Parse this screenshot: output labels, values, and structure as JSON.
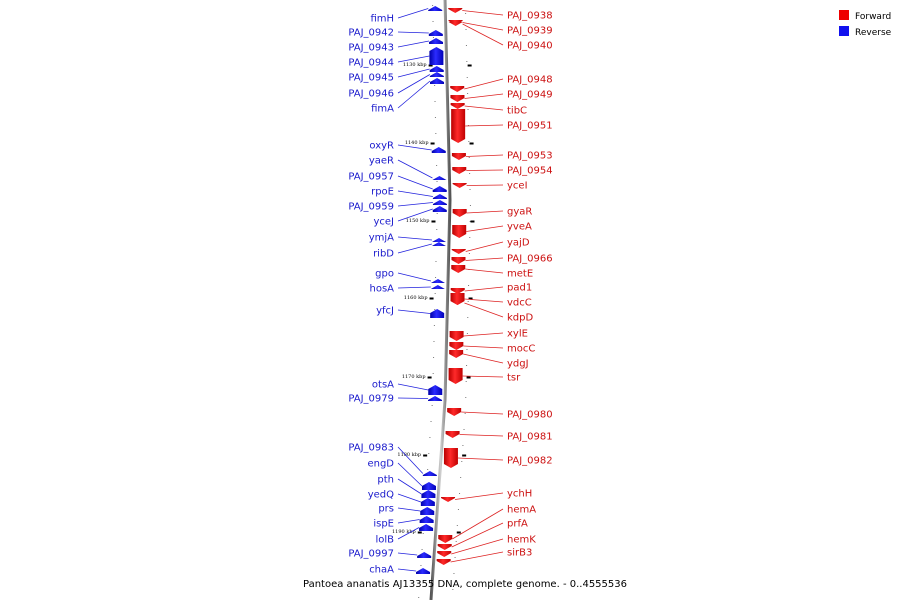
{
  "caption": "Pantoea ananatis AJ13355 DNA, complete genome. - 0..4555536",
  "legend": [
    {
      "label": "Forward",
      "color": "#ee0000"
    },
    {
      "label": "Reverse",
      "color": "#1111ee"
    }
  ],
  "ticks": [
    "1130 kbp",
    "1140 kbp",
    "1150 kbp",
    "1160 kbp",
    "1170 kbp",
    "1180 kbp",
    "1190 kbp"
  ],
  "reverse_genes": [
    "fimH",
    "PAJ_0942",
    "PAJ_0943",
    "PAJ_0944",
    "PAJ_0945",
    "PAJ_0946",
    "fimA",
    "oxyR",
    "yaeR",
    "PAJ_0957",
    "rpoE",
    "PAJ_0959",
    "yceJ",
    "ymjA",
    "ribD",
    "gpo",
    "hosA",
    "yfcJ",
    "otsA",
    "PAJ_0979",
    "PAJ_0983",
    "engD",
    "pth",
    "yedQ",
    "prs",
    "ispE",
    "lolB",
    "PAJ_0997",
    "chaA"
  ],
  "forward_genes": [
    "PAJ_0938",
    "PAJ_0939",
    "PAJ_0940",
    "PAJ_0948",
    "PAJ_0949",
    "tibC",
    "PAJ_0951",
    "PAJ_0953",
    "PAJ_0954",
    "yceI",
    "gyaR",
    "yveA",
    "yajD",
    "PAJ_0966",
    "metE",
    "pad1",
    "vdcC",
    "kdpD",
    "xylE",
    "mocC",
    "ydgJ",
    "tsr",
    "PAJ_0980",
    "PAJ_0981",
    "PAJ_0982",
    "ychH",
    "hemA",
    "prfA",
    "hemK",
    "sirB3"
  ]
}
